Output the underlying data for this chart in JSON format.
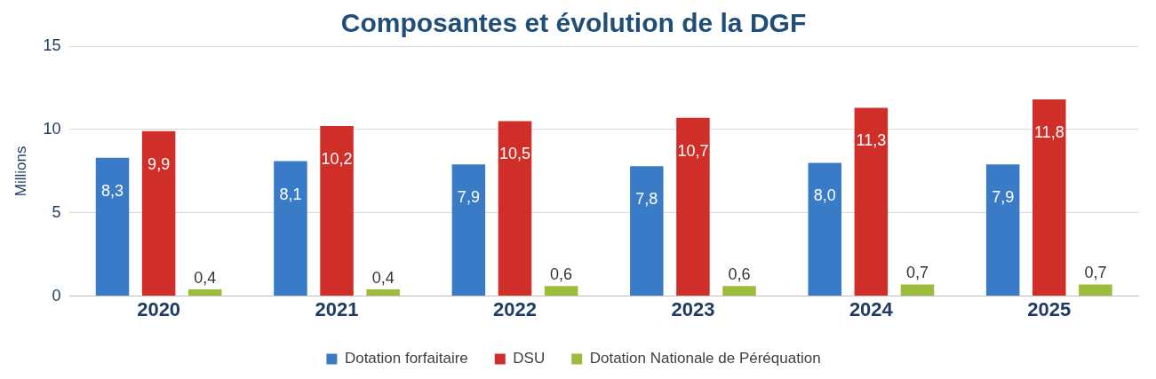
{
  "chart_data": {
    "type": "bar",
    "title": "Composantes et évolution de la DGF",
    "ylabel": "Millions",
    "categories": [
      "2020",
      "2021",
      "2022",
      "2023",
      "2024",
      "2025"
    ],
    "series": [
      {
        "name": "Dotation forfaitaire",
        "color": "#3a7bc8",
        "values": [
          8.3,
          8.1,
          7.9,
          7.8,
          8.0,
          7.9
        ],
        "value_labels": [
          "8,3",
          "8,1",
          "7,9",
          "7,8",
          "8,0",
          "7,9"
        ]
      },
      {
        "name": "DSU",
        "color": "#cf2f28",
        "values": [
          9.9,
          10.2,
          10.5,
          10.7,
          11.3,
          11.8
        ],
        "value_labels": [
          "9,9",
          "10,2",
          "10,5",
          "10,7",
          "11,3",
          "11,8"
        ]
      },
      {
        "name": "Dotation Nationale de Péréquation",
        "color": "#9cbc3c",
        "values": [
          0.4,
          0.4,
          0.6,
          0.6,
          0.7,
          0.7
        ],
        "value_labels": [
          "0,4",
          "0,4",
          "0,6",
          "0,6",
          "0,7",
          "0,7"
        ]
      }
    ],
    "ylim": [
      0,
      15
    ],
    "yticks": [
      0,
      5,
      10,
      15
    ],
    "grid": "y",
    "legend": "bottom"
  }
}
